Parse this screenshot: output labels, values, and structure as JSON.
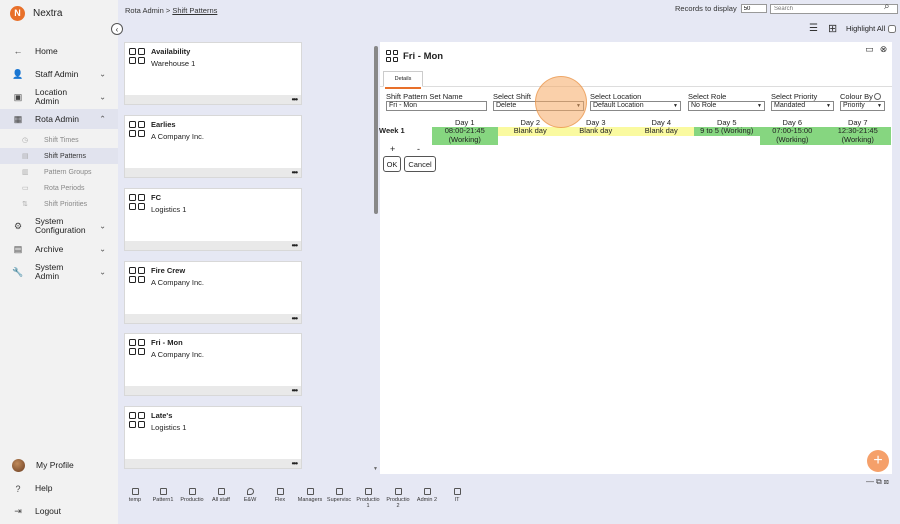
{
  "app": {
    "name": "Nextra"
  },
  "sidebar": {
    "items": [
      {
        "label": "Home",
        "icon": "arrow-left-icon"
      },
      {
        "label": "Staff Admin",
        "icon": "staff-icon"
      },
      {
        "label": "Location Admin",
        "icon": "location-icon"
      },
      {
        "label": "Rota Admin",
        "icon": "calendar-icon"
      }
    ],
    "rota_sub": [
      "Shift Times",
      "Shift Patterns",
      "Pattern Groups",
      "Rota Periods",
      "Shift Priorities"
    ],
    "more_items": [
      {
        "label": "System Configuration",
        "icon": "gear-icon"
      },
      {
        "label": "Archive",
        "icon": "archive-icon"
      },
      {
        "label": "System Admin",
        "icon": "wrench-icon"
      }
    ],
    "bottom": [
      "My Profile",
      "Help",
      "Logout"
    ]
  },
  "header": {
    "breadcrumb_root": "Rota Admin",
    "breadcrumb_sep": " > ",
    "breadcrumb_current": "Shift Patterns",
    "records_label": "Records to display",
    "records_value": "50",
    "search_placeholder": "Search",
    "highlight_all": "Highlight All"
  },
  "cards": [
    {
      "title": "Availability",
      "subtitle": "Warehouse 1"
    },
    {
      "title": "Earlies",
      "subtitle": "A Company Inc."
    },
    {
      "title": "FC",
      "subtitle": "Logistics 1"
    },
    {
      "title": "Fire Crew",
      "subtitle": "A Company Inc."
    },
    {
      "title": "Fri - Mon",
      "subtitle": "A Company Inc."
    },
    {
      "title": "Late's",
      "subtitle": "Logistics 1"
    }
  ],
  "detail": {
    "title": "Fri - Mon",
    "tab": "Details",
    "fields": {
      "set_name_label": "Shift Pattern Set Name",
      "set_name_value": "Fri - Mon",
      "shift_label": "Select Shift",
      "shift_value": "Delete",
      "location_label": "Select Location",
      "location_value": "Default Location",
      "role_label": "Select Role",
      "role_value": "No Role",
      "priority_label": "Select Priority",
      "priority_value": "Mandated",
      "colour_label": "Colour By",
      "colour_value": "Priority"
    },
    "week_label": "Week 1",
    "days": [
      {
        "head": "Day 1",
        "line1": "08:00-21:45",
        "line2": "(Working)",
        "color": "green"
      },
      {
        "head": "Day 2",
        "line1": "Blank day",
        "line2": "",
        "color": "yellow"
      },
      {
        "head": "Day 3",
        "line1": "Blank day",
        "line2": "",
        "color": "yellow"
      },
      {
        "head": "Day 4",
        "line1": "Blank day",
        "line2": "",
        "color": "yellow"
      },
      {
        "head": "Day 5",
        "line1": "9 to 5 (Working)",
        "line2": "",
        "color": "green"
      },
      {
        "head": "Day 6",
        "line1": "07:00-15:00",
        "line2": "(Working)",
        "color": "green"
      },
      {
        "head": "Day 7",
        "line1": "12:30-21:45",
        "line2": "(Working)",
        "color": "green"
      }
    ],
    "plus": "+",
    "minus": "-",
    "ok": "OK",
    "cancel": "Cancel"
  },
  "quickbar": [
    {
      "l1": "temp",
      "l2": ""
    },
    {
      "l1": "Pattern1",
      "l2": ""
    },
    {
      "l1": "Productio",
      "l2": ""
    },
    {
      "l1": "All staff",
      "l2": ""
    },
    {
      "l1": "E&W",
      "l2": ""
    },
    {
      "l1": "Flex",
      "l2": ""
    },
    {
      "l1": "Managers",
      "l2": ""
    },
    {
      "l1": "Supervisc",
      "l2": ""
    },
    {
      "l1": "Productio",
      "l2": "1"
    },
    {
      "l1": "Productio",
      "l2": "2"
    },
    {
      "l1": "Admin 2",
      "l2": ""
    },
    {
      "l1": "IT",
      "l2": ""
    }
  ],
  "colors": {
    "accent": "#e8702a",
    "working": "#86d680",
    "blank": "#fafaa0"
  }
}
